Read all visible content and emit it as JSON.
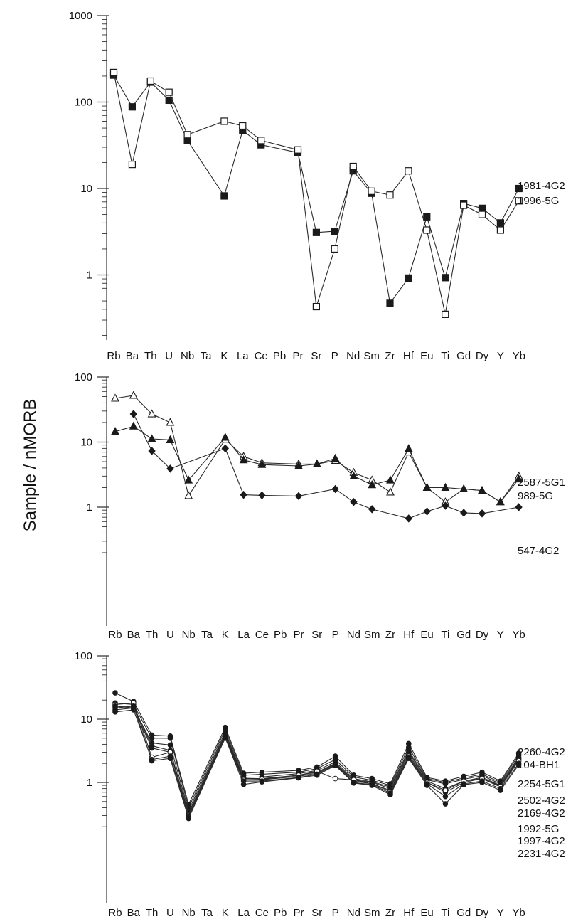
{
  "y_axis_title": "Sample / nMORB",
  "chart_data": [
    {
      "type": "line",
      "y_scale": "log",
      "ylim": [
        0.2,
        1000
      ],
      "y_ticks": [
        1,
        10,
        100,
        1000
      ],
      "y_tick_labels": [
        "1",
        "10",
        "100",
        "1000"
      ],
      "categories": [
        "Rb",
        "Ba",
        "Th",
        "U",
        "Nb",
        "Ta",
        "K",
        "La",
        "Ce",
        "Pb",
        "Pr",
        "Sr",
        "P",
        "Nd",
        "Sm",
        "Zr",
        "Hf",
        "Eu",
        "Ti",
        "Gd",
        "Dy",
        "Y",
        "Yb"
      ],
      "series": [
        {
          "name": "1981-4G2",
          "marker": "filled-square",
          "values": [
            205,
            88,
            170,
            105,
            36,
            null,
            8.2,
            47,
            32,
            null,
            26,
            3.1,
            3.2,
            16,
            8.8,
            0.47,
            0.92,
            4.7,
            0.93,
            6.7,
            5.9,
            4.0,
            10
          ]
        },
        {
          "name": "1996-5G",
          "marker": "open-square",
          "values": [
            220,
            19,
            175,
            130,
            42,
            null,
            60,
            53,
            36,
            null,
            28,
            0.43,
            2.0,
            18,
            9.3,
            8.4,
            16,
            3.3,
            0.35,
            6.4,
            5.0,
            3.3,
            7.2
          ]
        }
      ]
    },
    {
      "type": "line",
      "y_scale": "log",
      "ylim": [
        0.2,
        100
      ],
      "y_ticks": [
        1,
        10,
        100
      ],
      "y_tick_labels": [
        "1",
        "10",
        "100"
      ],
      "categories": [
        "Rb",
        "Ba",
        "Th",
        "U",
        "Nb",
        "Ta",
        "K",
        "La",
        "Ce",
        "Pb",
        "Pr",
        "Sr",
        "P",
        "Nd",
        "Sm",
        "Zr",
        "Hf",
        "Eu",
        "Ti",
        "Gd",
        "Dy",
        "Y",
        "Yb"
      ],
      "series": [
        {
          "name": "2587-5G1",
          "marker": "open-triangle",
          "values": [
            47,
            52,
            27,
            20,
            1.5,
            null,
            11,
            6.0,
            4.8,
            null,
            4.6,
            4.6,
            5.2,
            3.4,
            2.6,
            1.7,
            7.0,
            2.0,
            1.2,
            1.9,
            1.8,
            1.2,
            3.0
          ]
        },
        {
          "name": "989-5G",
          "marker": "filled-triangle",
          "values": [
            14.5,
            17.5,
            11.2,
            10.8,
            2.6,
            null,
            11.8,
            5.3,
            4.5,
            null,
            4.3,
            4.6,
            5.6,
            3.0,
            2.2,
            2.6,
            7.9,
            2.0,
            2.0,
            1.9,
            1.8,
            1.2,
            2.7
          ]
        },
        {
          "name": "547-4G2",
          "marker": "filled-diamond",
          "values": [
            null,
            27,
            7.3,
            3.9,
            null,
            null,
            8.0,
            1.55,
            1.52,
            null,
            1.48,
            null,
            1.9,
            1.2,
            0.93,
            null,
            0.67,
            0.86,
            1.05,
            0.82,
            0.8,
            null,
            1.0
          ]
        }
      ]
    },
    {
      "type": "line",
      "y_scale": "log",
      "ylim": [
        0.2,
        100
      ],
      "y_ticks": [
        1,
        10,
        100
      ],
      "y_tick_labels": [
        "1",
        "10",
        "100"
      ],
      "categories": [
        "Rb",
        "Ba",
        "Th",
        "U",
        "Nb",
        "Ta",
        "K",
        "La",
        "Ce",
        "Pb",
        "Pr",
        "Sr",
        "P",
        "Nd",
        "Sm",
        "Zr",
        "Hf",
        "Eu",
        "Ti",
        "Gd",
        "Dy",
        "Y",
        "Yb"
      ],
      "series": [
        {
          "name": "2260-4G2",
          "marker": "filled-circle",
          "values": [
            26,
            19,
            5.6,
            5.4,
            0.45,
            null,
            7.4,
            1.4,
            1.45,
            null,
            1.55,
            1.75,
            2.6,
            1.3,
            1.15,
            0.95,
            4.1,
            1.2,
            1.05,
            1.25,
            1.45,
            1.05,
            2.9
          ]
        },
        {
          "name": "104-BH1",
          "marker": "filled-circle",
          "values": [
            18,
            17,
            5.0,
            5.0,
            0.4,
            null,
            6.8,
            1.3,
            1.35,
            null,
            1.45,
            1.65,
            2.3,
            1.22,
            1.08,
            0.9,
            3.6,
            1.15,
            1.0,
            1.18,
            1.35,
            1.0,
            2.7
          ]
        },
        {
          "name": "2254-5G1",
          "marker": "filled-circle",
          "values": [
            16,
            15,
            4.2,
            3.9,
            0.36,
            null,
            6.2,
            1.2,
            1.22,
            null,
            1.38,
            1.55,
            2.1,
            1.15,
            1.02,
            0.85,
            3.2,
            1.1,
            0.95,
            1.12,
            1.28,
            0.95,
            2.5
          ]
        },
        {
          "name": "2502-4G2",
          "marker": "filled-circle",
          "values": [
            15,
            16,
            3.8,
            3.2,
            0.33,
            null,
            5.8,
            1.15,
            1.15,
            null,
            1.3,
            1.45,
            2.0,
            1.1,
            1.0,
            0.8,
            3.0,
            1.05,
            0.8,
            1.05,
            1.2,
            0.9,
            2.4
          ]
        },
        {
          "name": "2169-4G2",
          "marker": "filled-circle",
          "values": [
            14,
            15,
            3.5,
            3.0,
            0.31,
            null,
            5.5,
            1.1,
            1.1,
            null,
            1.25,
            1.4,
            1.95,
            1.05,
            0.95,
            0.75,
            2.8,
            1.0,
            0.7,
            1.0,
            1.15,
            0.88,
            2.3
          ]
        },
        {
          "name": "1992-5G",
          "marker": "open-circle",
          "values": [
            17,
            18,
            2.5,
            3.0,
            0.3,
            null,
            5.2,
            1.1,
            1.12,
            null,
            1.3,
            1.5,
            1.15,
            1.1,
            0.95,
            0.72,
            2.6,
            1.0,
            0.75,
            1.05,
            1.15,
            0.85,
            2.2
          ]
        },
        {
          "name": "1997-4G2",
          "marker": "filled-circle",
          "values": [
            13,
            14,
            2.3,
            2.6,
            0.29,
            null,
            5.0,
            1.05,
            1.05,
            null,
            1.2,
            1.35,
            1.9,
            1.0,
            0.92,
            0.68,
            2.5,
            0.95,
            0.6,
            0.95,
            1.05,
            0.8,
            2.0
          ]
        },
        {
          "name": "2231-4G2",
          "marker": "filled-circle",
          "values": [
            16,
            16,
            2.2,
            2.4,
            0.27,
            null,
            5.1,
            0.93,
            1.02,
            null,
            1.18,
            1.3,
            1.85,
            0.98,
            0.9,
            0.64,
            2.4,
            0.9,
            0.46,
            0.92,
            1.0,
            0.75,
            1.9
          ]
        }
      ]
    }
  ]
}
